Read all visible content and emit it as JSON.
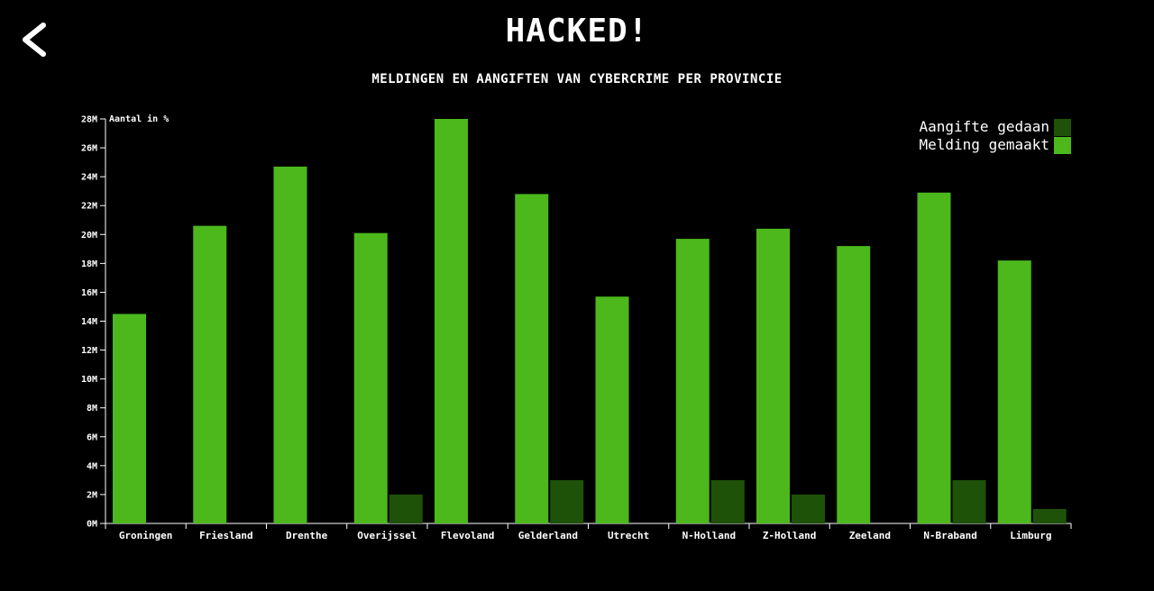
{
  "header": {
    "title": "HACKED!",
    "back_icon": "chevron-left-icon"
  },
  "colors": {
    "background": "#000000",
    "text": "#ffffff",
    "melding": "#4cb81c",
    "aangifte": "#1e5209"
  },
  "chart_data": {
    "type": "bar",
    "title": "MELDINGEN EN AANGIFTEN VAN CYBERCRIME PER PROVINCIE",
    "ylabel": "Aantal in %",
    "xlabel": "",
    "ylim": [
      0,
      28
    ],
    "y_ticks": [
      0,
      2,
      4,
      6,
      8,
      10,
      12,
      14,
      16,
      18,
      20,
      22,
      24,
      26,
      28
    ],
    "y_tick_labels": [
      "0M",
      "2M",
      "4M",
      "6M",
      "8M",
      "10M",
      "12M",
      "14M",
      "16M",
      "18M",
      "20M",
      "22M",
      "24M",
      "26M",
      "28M"
    ],
    "grid": false,
    "legend_position": "top-right",
    "categories": [
      "Groningen",
      "Friesland",
      "Drenthe",
      "Overijssel",
      "Flevoland",
      "Gelderland",
      "Utrecht",
      "N-Holland",
      "Z-Holland",
      "Zeeland",
      "N-Braband",
      "Limburg"
    ],
    "series": [
      {
        "name": "Melding gemaakt",
        "color": "#4cb81c",
        "values": [
          14.5,
          20.6,
          24.7,
          20.1,
          28.0,
          22.8,
          15.7,
          19.7,
          20.4,
          19.2,
          22.9,
          18.2
        ]
      },
      {
        "name": "Aangifte gedaan",
        "color": "#1e5209",
        "values": [
          0,
          0,
          0,
          2,
          0,
          3,
          0,
          3,
          2,
          0,
          3,
          1
        ]
      }
    ],
    "legend_order": [
      "Aangifte gedaan",
      "Melding gemaakt"
    ]
  }
}
